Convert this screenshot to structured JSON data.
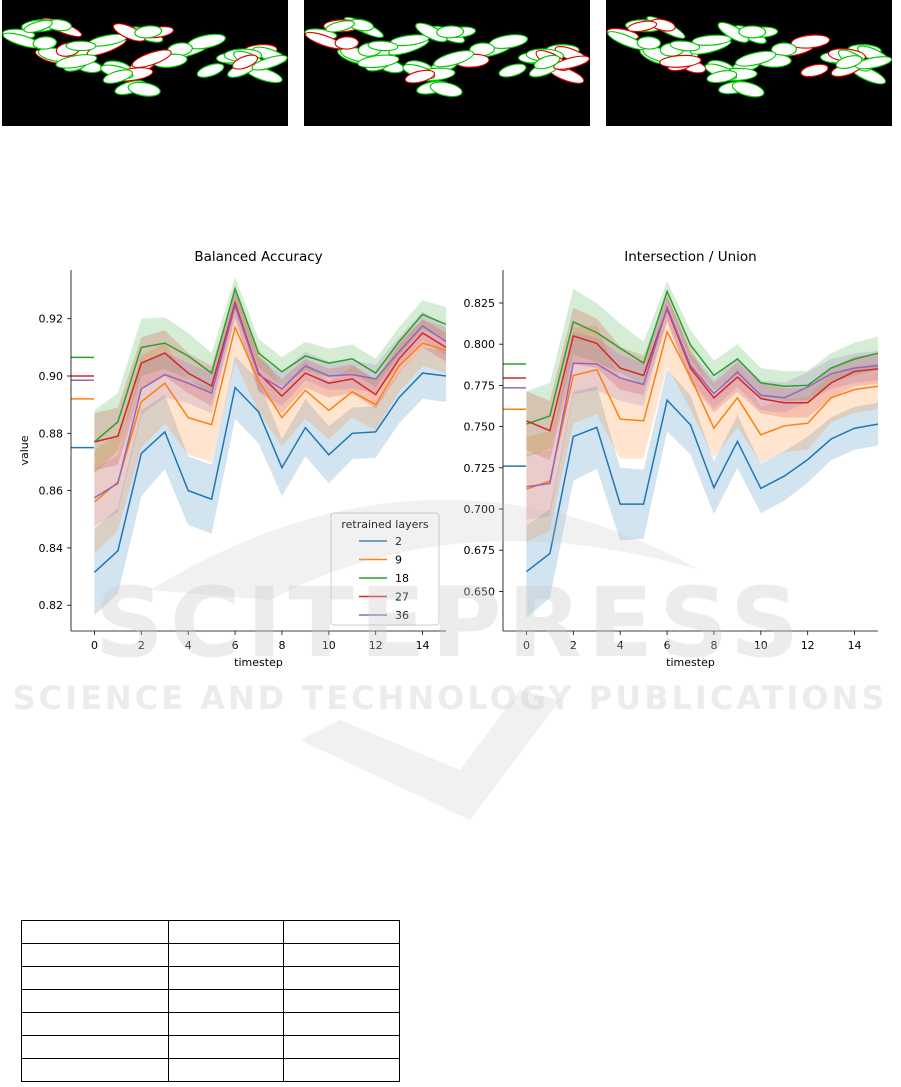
{
  "images": {
    "cell_color": "#ffffff",
    "boundary_colors": [
      "#00c800",
      "#e00000"
    ]
  },
  "watermark": {
    "main": "SCITEPRESS",
    "sub": "SCIENCE AND TECHNOLOGY PUBLICATIONS"
  },
  "chart_data": [
    {
      "type": "line",
      "title": "Balanced Accuracy",
      "xlabel": "timestep",
      "ylabel": "value",
      "xlim": [
        -1,
        15
      ],
      "ylim": [
        0.811,
        0.937
      ],
      "xticks": [
        "0",
        "2",
        "4",
        "6",
        "8",
        "10",
        "12",
        "14"
      ],
      "yticks": [
        "0.82",
        "0.84",
        "0.86",
        "0.88",
        "0.90",
        "0.92"
      ],
      "x": [
        0,
        1,
        2,
        3,
        4,
        5,
        6,
        7,
        8,
        9,
        10,
        11,
        12,
        13,
        14,
        15
      ],
      "legend": {
        "title": "retrained layers",
        "position": "lower-right"
      },
      "series": [
        {
          "name": "2",
          "color": "#1f77b4",
          "values": [
            0.8315,
            0.839,
            0.873,
            0.8805,
            0.86,
            0.857,
            0.896,
            0.8875,
            0.868,
            0.882,
            0.8725,
            0.88,
            0.8805,
            0.8925,
            0.901,
            0.9
          ],
          "band": [
            0.015,
            0.015,
            0.015,
            0.013,
            0.012,
            0.012,
            0.011,
            0.011,
            0.01,
            0.01,
            0.01,
            0.009,
            0.009,
            0.009,
            0.009,
            0.009
          ],
          "baseline": 0.875
        },
        {
          "name": "9",
          "color": "#ff7f0e",
          "values": [
            0.856,
            0.863,
            0.891,
            0.8975,
            0.8855,
            0.883,
            0.917,
            0.8985,
            0.8855,
            0.895,
            0.888,
            0.8945,
            0.89,
            0.9035,
            0.9115,
            0.909
          ],
          "band": [
            0.018,
            0.017,
            0.016,
            0.014,
            0.013,
            0.013,
            0.012,
            0.011,
            0.01,
            0.01,
            0.01,
            0.009,
            0.009,
            0.009,
            0.008,
            0.008
          ],
          "baseline": 0.892
        },
        {
          "name": "18",
          "color": "#2ca02c",
          "values": [
            0.877,
            0.884,
            0.91,
            0.9115,
            0.907,
            0.901,
            0.9305,
            0.908,
            0.9015,
            0.907,
            0.9045,
            0.906,
            0.901,
            0.912,
            0.9215,
            0.918
          ],
          "band": [
            0.011,
            0.01,
            0.01,
            0.009,
            0.008,
            0.007,
            0.004,
            0.005,
            0.005,
            0.005,
            0.005,
            0.005,
            0.005,
            0.005,
            0.005,
            0.006
          ],
          "baseline": 0.9065
        },
        {
          "name": "27",
          "color": "#d62728",
          "values": [
            0.877,
            0.879,
            0.9045,
            0.908,
            0.901,
            0.8965,
            0.9255,
            0.901,
            0.893,
            0.901,
            0.8975,
            0.899,
            0.8935,
            0.906,
            0.915,
            0.91
          ],
          "band": [
            0.01,
            0.01,
            0.009,
            0.008,
            0.007,
            0.007,
            0.005,
            0.006,
            0.006,
            0.005,
            0.005,
            0.005,
            0.005,
            0.005,
            0.005,
            0.005
          ],
          "baseline": 0.9
        },
        {
          "name": "36",
          "color": "#9467bd",
          "values": [
            0.8575,
            0.8625,
            0.8955,
            0.9005,
            0.8975,
            0.894,
            0.9245,
            0.9005,
            0.8955,
            0.9035,
            0.9,
            0.9005,
            0.899,
            0.9085,
            0.9175,
            0.912
          ],
          "band": [
            0.01,
            0.01,
            0.009,
            0.008,
            0.007,
            0.007,
            0.005,
            0.006,
            0.006,
            0.005,
            0.005,
            0.005,
            0.005,
            0.005,
            0.005,
            0.005
          ],
          "baseline": 0.8985
        }
      ]
    },
    {
      "type": "line",
      "title": "Intersection / Union",
      "xlabel": "timestep",
      "ylabel": "",
      "xlim": [
        -1,
        15
      ],
      "ylim": [
        0.626,
        0.845
      ],
      "xticks": [
        "0",
        "2",
        "4",
        "6",
        "8",
        "10",
        "12",
        "14"
      ],
      "yticks": [
        "0.650",
        "0.675",
        "0.700",
        "0.725",
        "0.750",
        "0.775",
        "0.800",
        "0.825"
      ],
      "x": [
        0,
        1,
        2,
        3,
        4,
        5,
        6,
        7,
        8,
        9,
        10,
        11,
        12,
        13,
        14,
        15
      ],
      "series": [
        {
          "name": "2",
          "color": "#1f77b4",
          "values": [
            0.662,
            0.673,
            0.744,
            0.7495,
            0.703,
            0.703,
            0.766,
            0.751,
            0.713,
            0.741,
            0.7125,
            0.72,
            0.73,
            0.7425,
            0.749,
            0.7515
          ],
          "band": [
            0.028,
            0.027,
            0.027,
            0.025,
            0.022,
            0.021,
            0.019,
            0.018,
            0.016,
            0.016,
            0.015,
            0.015,
            0.014,
            0.013,
            0.013,
            0.013
          ],
          "baseline": 0.726
        },
        {
          "name": "9",
          "color": "#ff7f0e",
          "values": [
            0.712,
            0.717,
            0.781,
            0.7845,
            0.7545,
            0.7535,
            0.8075,
            0.78,
            0.749,
            0.7675,
            0.745,
            0.7505,
            0.752,
            0.7675,
            0.7725,
            0.7745
          ],
          "band": [
            0.032,
            0.03,
            0.029,
            0.027,
            0.024,
            0.023,
            0.021,
            0.02,
            0.018,
            0.018,
            0.017,
            0.016,
            0.016,
            0.015,
            0.014,
            0.014
          ],
          "baseline": 0.7605
        },
        {
          "name": "18",
          "color": "#2ca02c",
          "values": [
            0.7515,
            0.7565,
            0.8135,
            0.807,
            0.7975,
            0.7885,
            0.832,
            0.7995,
            0.781,
            0.791,
            0.7765,
            0.7745,
            0.775,
            0.7855,
            0.791,
            0.7945
          ],
          "band": [
            0.02,
            0.02,
            0.02,
            0.018,
            0.015,
            0.013,
            0.006,
            0.009,
            0.009,
            0.009,
            0.009,
            0.009,
            0.009,
            0.009,
            0.01,
            0.01
          ],
          "baseline": 0.788
        },
        {
          "name": "27",
          "color": "#d62728",
          "values": [
            0.7535,
            0.7475,
            0.805,
            0.8005,
            0.7855,
            0.781,
            0.8215,
            0.7855,
            0.7675,
            0.78,
            0.767,
            0.7645,
            0.7645,
            0.7765,
            0.7835,
            0.785
          ],
          "band": [
            0.018,
            0.018,
            0.017,
            0.015,
            0.013,
            0.012,
            0.008,
            0.009,
            0.009,
            0.009,
            0.009,
            0.009,
            0.009,
            0.009,
            0.009,
            0.009
          ],
          "baseline": 0.7795
        },
        {
          "name": "36",
          "color": "#9467bd",
          "values": [
            0.7135,
            0.7155,
            0.7885,
            0.788,
            0.7795,
            0.7755,
            0.8225,
            0.787,
            0.77,
            0.783,
            0.769,
            0.7675,
            0.774,
            0.782,
            0.7855,
            0.787
          ],
          "band": [
            0.02,
            0.02,
            0.019,
            0.016,
            0.014,
            0.013,
            0.008,
            0.009,
            0.009,
            0.009,
            0.009,
            0.009,
            0.009,
            0.009,
            0.009,
            0.009
          ],
          "baseline": 0.7735
        }
      ]
    }
  ],
  "table": {
    "rows": 7,
    "cols": 3
  }
}
